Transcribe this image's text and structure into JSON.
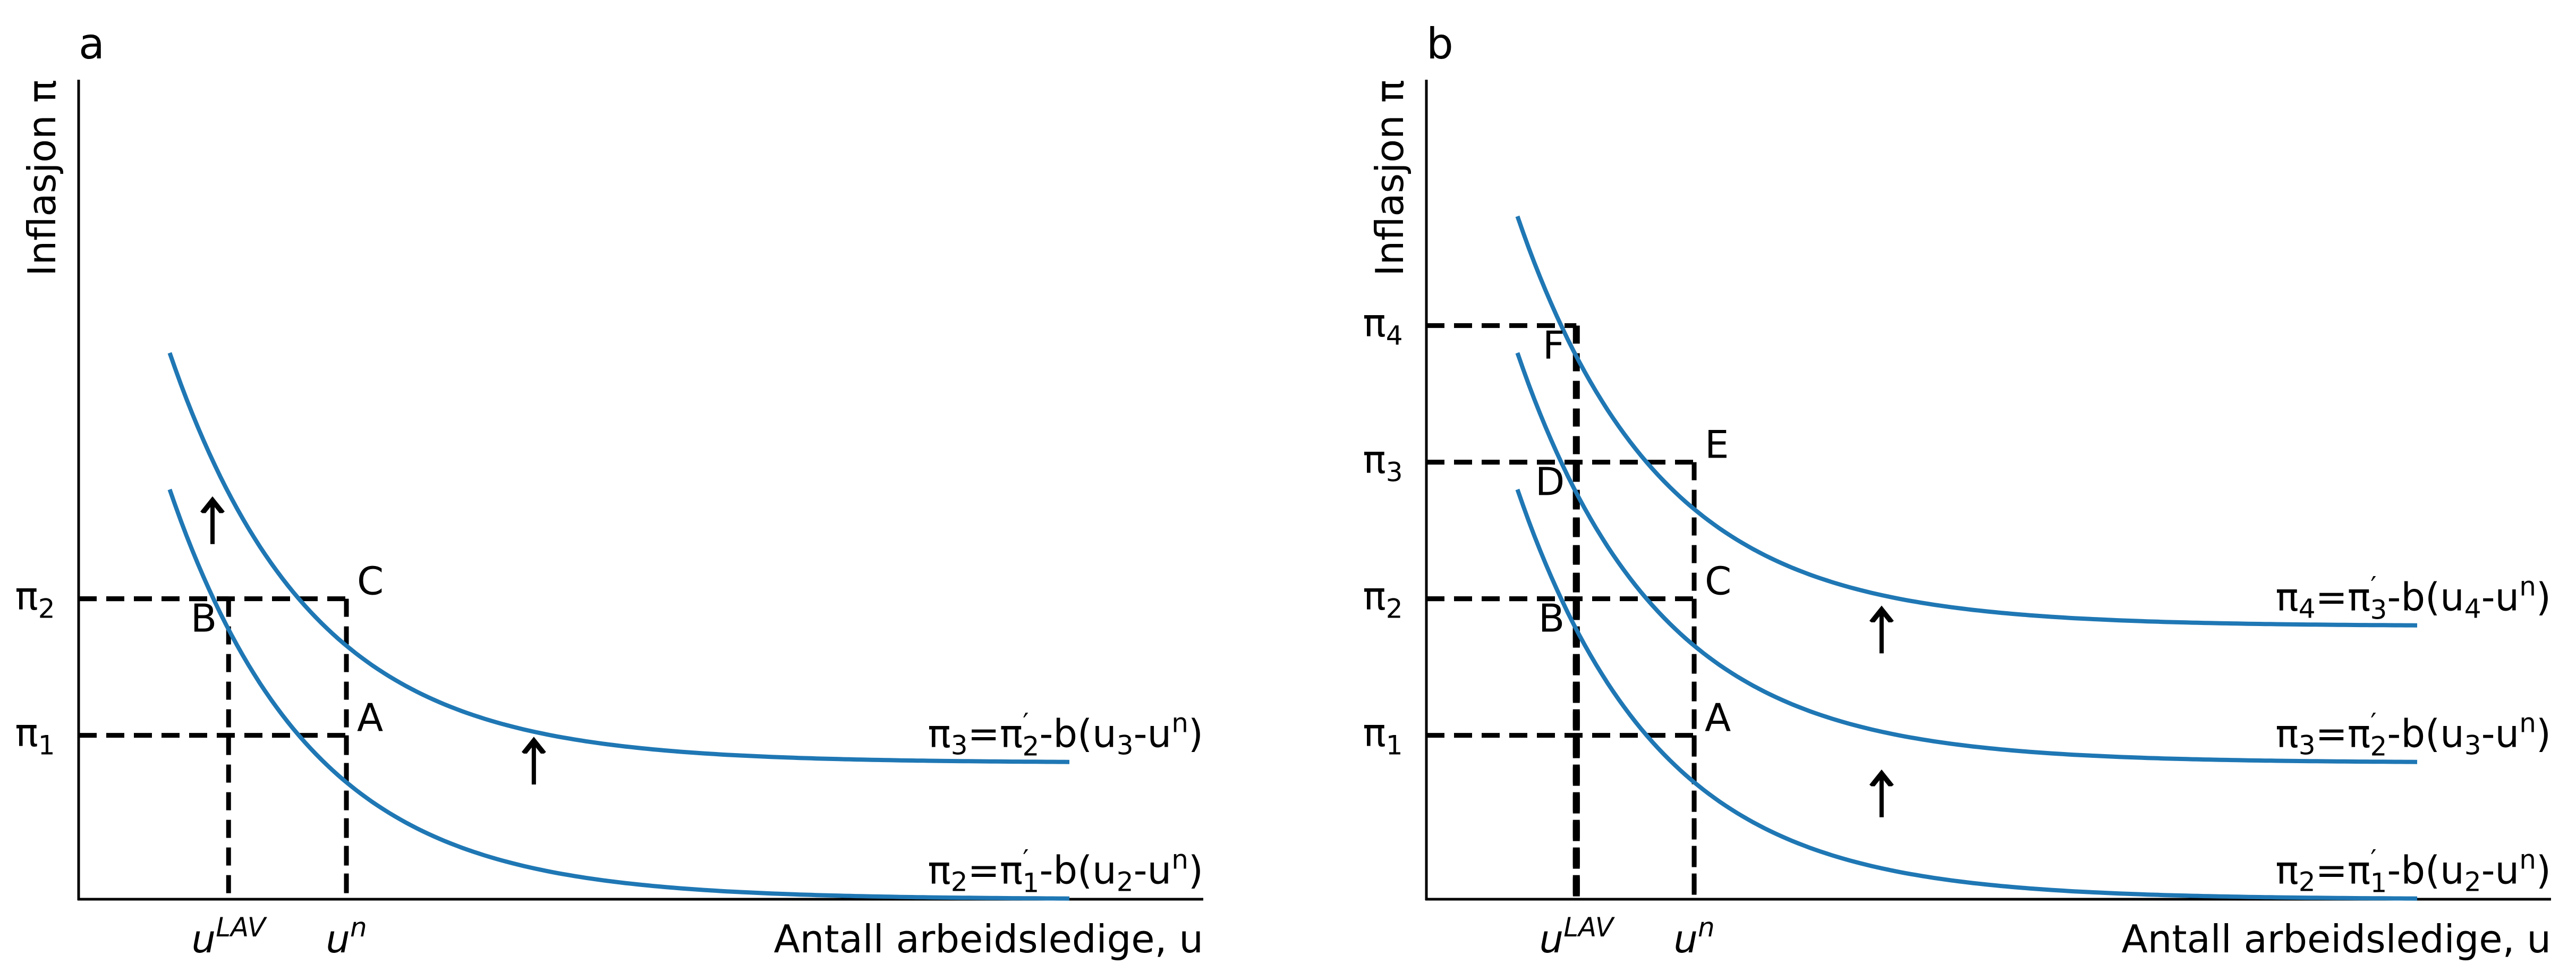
{
  "chart_data": [
    {
      "type": "line",
      "panel_label": "a",
      "ylabel": "Inflasjon π",
      "xlabel": "Antall arbeidsledige, u",
      "x_ticks": [
        {
          "x": 2.8,
          "base": "u",
          "sup": "LAV"
        },
        {
          "x": 5.0,
          "base": "u",
          "sup": "n"
        }
      ],
      "y_ticks": [
        {
          "y": 3.0,
          "base": "π",
          "sub": "1"
        },
        {
          "y": 5.5,
          "base": "π",
          "sub": "2"
        }
      ],
      "xlim": [
        0,
        21
      ],
      "ylim": [
        0,
        15
      ],
      "series": [
        {
          "label_parts": [
            "π",
            "2",
            "=π",
            "′",
            "1",
            "-b(u",
            "2",
            "-u",
            "n",
            ")"
          ],
          "x_start": 1.7,
          "x_end": 18.5,
          "asymptote": 0,
          "y_start": 7.5,
          "k": 0.38
        },
        {
          "label_parts": [
            "π",
            "3",
            "=π",
            "′",
            "2",
            "-b(u",
            "3",
            "-u",
            "n",
            ")"
          ],
          "x_start": 1.7,
          "x_end": 18.5,
          "asymptote": 2.5,
          "y_start": 10.0,
          "k": 0.38
        }
      ],
      "points": [
        {
          "label": "A",
          "x": 5.0,
          "y": 3.0
        },
        {
          "label": "B",
          "x": 2.8,
          "y": 5.5
        },
        {
          "label": "C",
          "x": 5.0,
          "y": 5.5
        }
      ],
      "guides": [
        {
          "x": 5.0,
          "y": 3.0
        },
        {
          "x": 2.8,
          "y": 5.5
        },
        {
          "x": 5.0,
          "y": 5.5
        }
      ],
      "arrows": [
        {
          "x": 2.5,
          "y0": 6.5,
          "y1": 7.3
        },
        {
          "x": 8.5,
          "y0": 2.1,
          "y1": 2.9
        }
      ]
    },
    {
      "type": "line",
      "panel_label": "b",
      "ylabel": "Inflasjon π",
      "xlabel": "Antall arbeidsledige, u",
      "x_ticks": [
        {
          "x": 2.8,
          "base": "u",
          "sup": "LAV"
        },
        {
          "x": 5.0,
          "base": "u",
          "sup": "n"
        }
      ],
      "y_ticks": [
        {
          "y": 3.0,
          "base": "π",
          "sub": "1"
        },
        {
          "y": 5.5,
          "base": "π",
          "sub": "2"
        },
        {
          "y": 8.0,
          "base": "π",
          "sub": "3"
        },
        {
          "y": 10.5,
          "base": "π",
          "sub": "4"
        }
      ],
      "xlim": [
        0,
        21
      ],
      "ylim": [
        0,
        15
      ],
      "series": [
        {
          "label_parts": [
            "π",
            "2",
            "=π",
            "′",
            "1",
            "-b(u",
            "2",
            "-u",
            "n",
            ")"
          ],
          "x_start": 1.7,
          "x_end": 18.5,
          "asymptote": 0,
          "y_start": 7.5,
          "k": 0.38
        },
        {
          "label_parts": [
            "π",
            "3",
            "=π",
            "′",
            "2",
            "-b(u",
            "3",
            "-u",
            "n",
            ")"
          ],
          "x_start": 1.7,
          "x_end": 18.5,
          "asymptote": 2.5,
          "y_start": 10.0,
          "k": 0.38
        },
        {
          "label_parts": [
            "π",
            "4",
            "=π",
            "′",
            "3",
            "-b(u",
            "4",
            "-u",
            "n",
            ")"
          ],
          "x_start": 1.7,
          "x_end": 18.5,
          "asymptote": 5.0,
          "y_start": 12.5,
          "k": 0.38
        }
      ],
      "points": [
        {
          "label": "A",
          "x": 5.0,
          "y": 3.0
        },
        {
          "label": "B",
          "x": 2.8,
          "y": 5.5
        },
        {
          "label": "C",
          "x": 5.0,
          "y": 5.5
        },
        {
          "label": "D",
          "x": 2.8,
          "y": 8.0
        },
        {
          "label": "E",
          "x": 5.0,
          "y": 8.0
        },
        {
          "label": "F",
          "x": 2.8,
          "y": 10.5
        }
      ],
      "guides": [
        {
          "x": 5.0,
          "y": 3.0
        },
        {
          "x": 2.8,
          "y": 5.5
        },
        {
          "x": 5.0,
          "y": 5.5
        },
        {
          "x": 2.8,
          "y": 8.0
        },
        {
          "x": 5.0,
          "y": 8.0
        },
        {
          "x": 2.8,
          "y": 10.5
        }
      ],
      "arrows": [
        {
          "x": 8.5,
          "y0": 1.5,
          "y1": 2.3
        },
        {
          "x": 8.5,
          "y0": 4.5,
          "y1": 5.3
        }
      ]
    }
  ]
}
